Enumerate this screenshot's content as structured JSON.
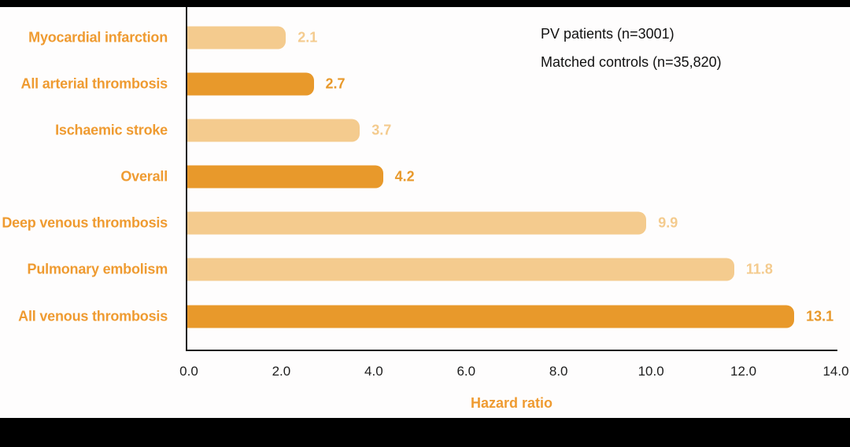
{
  "chart_data": {
    "type": "bar",
    "orientation": "horizontal",
    "title": "",
    "categories": [
      "Myocardial infarction",
      "All arterial thrombosis",
      "Ischaemic stroke",
      "Overall",
      "Deep venous thrombosis",
      "Pulmonary embolism",
      "All venous thrombosis"
    ],
    "series": [
      {
        "name": "Hazard ratio",
        "values": [
          2.1,
          2.7,
          3.7,
          4.2,
          9.9,
          11.8,
          13.1
        ]
      }
    ],
    "value_labels": [
      "2.1",
      "2.7",
      "3.7",
      "4.2",
      "9.9",
      "11.8",
      "13.1"
    ],
    "bar_styles": [
      "light",
      "dark",
      "light",
      "dark",
      "light",
      "light",
      "dark"
    ],
    "xlabel": "Hazard ratio",
    "xlim": [
      0,
      14
    ],
    "xticks": [
      "0.0",
      "2.0",
      "4.0",
      "6.0",
      "8.0",
      "10.0",
      "12.0",
      "14.0"
    ],
    "grid": false,
    "legend": {
      "position": "top-right",
      "items": [
        "PV patients (n=3001)",
        "Matched controls (n=35,820)"
      ]
    },
    "colors": {
      "bar_dark": "#E8992B",
      "bar_light": "#F4CB8E",
      "text_orange": "#EF9B31",
      "axis": "#1C1C1C",
      "tick_text": "#1D1D1D",
      "legend_text": "#111111",
      "frame_black": "#000000"
    }
  }
}
